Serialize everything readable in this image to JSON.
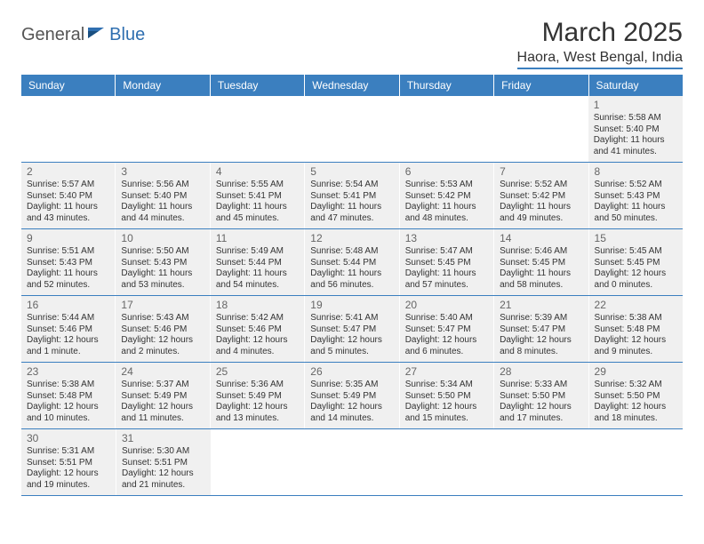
{
  "logo": {
    "general": "General",
    "blue": "Blue"
  },
  "title": "March 2025",
  "location": "Haora, West Bengal, India",
  "colors": {
    "header_bg": "#3b7fbf",
    "header_text": "#ffffff",
    "cell_bg": "#f0f0f0",
    "row_border": "#3b7fbf",
    "daynum": "#666666",
    "body_text": "#333333"
  },
  "day_headers": [
    "Sunday",
    "Monday",
    "Tuesday",
    "Wednesday",
    "Thursday",
    "Friday",
    "Saturday"
  ],
  "weeks": [
    [
      {
        "empty": true
      },
      {
        "empty": true
      },
      {
        "empty": true
      },
      {
        "empty": true
      },
      {
        "empty": true
      },
      {
        "empty": true
      },
      {
        "n": "1",
        "sr": "5:58 AM",
        "ss": "5:40 PM",
        "dl": "11 hours and 41 minutes."
      }
    ],
    [
      {
        "n": "2",
        "sr": "5:57 AM",
        "ss": "5:40 PM",
        "dl": "11 hours and 43 minutes."
      },
      {
        "n": "3",
        "sr": "5:56 AM",
        "ss": "5:40 PM",
        "dl": "11 hours and 44 minutes."
      },
      {
        "n": "4",
        "sr": "5:55 AM",
        "ss": "5:41 PM",
        "dl": "11 hours and 45 minutes."
      },
      {
        "n": "5",
        "sr": "5:54 AM",
        "ss": "5:41 PM",
        "dl": "11 hours and 47 minutes."
      },
      {
        "n": "6",
        "sr": "5:53 AM",
        "ss": "5:42 PM",
        "dl": "11 hours and 48 minutes."
      },
      {
        "n": "7",
        "sr": "5:52 AM",
        "ss": "5:42 PM",
        "dl": "11 hours and 49 minutes."
      },
      {
        "n": "8",
        "sr": "5:52 AM",
        "ss": "5:43 PM",
        "dl": "11 hours and 50 minutes."
      }
    ],
    [
      {
        "n": "9",
        "sr": "5:51 AM",
        "ss": "5:43 PM",
        "dl": "11 hours and 52 minutes."
      },
      {
        "n": "10",
        "sr": "5:50 AM",
        "ss": "5:43 PM",
        "dl": "11 hours and 53 minutes."
      },
      {
        "n": "11",
        "sr": "5:49 AM",
        "ss": "5:44 PM",
        "dl": "11 hours and 54 minutes."
      },
      {
        "n": "12",
        "sr": "5:48 AM",
        "ss": "5:44 PM",
        "dl": "11 hours and 56 minutes."
      },
      {
        "n": "13",
        "sr": "5:47 AM",
        "ss": "5:45 PM",
        "dl": "11 hours and 57 minutes."
      },
      {
        "n": "14",
        "sr": "5:46 AM",
        "ss": "5:45 PM",
        "dl": "11 hours and 58 minutes."
      },
      {
        "n": "15",
        "sr": "5:45 AM",
        "ss": "5:45 PM",
        "dl": "12 hours and 0 minutes."
      }
    ],
    [
      {
        "n": "16",
        "sr": "5:44 AM",
        "ss": "5:46 PM",
        "dl": "12 hours and 1 minute."
      },
      {
        "n": "17",
        "sr": "5:43 AM",
        "ss": "5:46 PM",
        "dl": "12 hours and 2 minutes."
      },
      {
        "n": "18",
        "sr": "5:42 AM",
        "ss": "5:46 PM",
        "dl": "12 hours and 4 minutes."
      },
      {
        "n": "19",
        "sr": "5:41 AM",
        "ss": "5:47 PM",
        "dl": "12 hours and 5 minutes."
      },
      {
        "n": "20",
        "sr": "5:40 AM",
        "ss": "5:47 PM",
        "dl": "12 hours and 6 minutes."
      },
      {
        "n": "21",
        "sr": "5:39 AM",
        "ss": "5:47 PM",
        "dl": "12 hours and 8 minutes."
      },
      {
        "n": "22",
        "sr": "5:38 AM",
        "ss": "5:48 PM",
        "dl": "12 hours and 9 minutes."
      }
    ],
    [
      {
        "n": "23",
        "sr": "5:38 AM",
        "ss": "5:48 PM",
        "dl": "12 hours and 10 minutes."
      },
      {
        "n": "24",
        "sr": "5:37 AM",
        "ss": "5:49 PM",
        "dl": "12 hours and 11 minutes."
      },
      {
        "n": "25",
        "sr": "5:36 AM",
        "ss": "5:49 PM",
        "dl": "12 hours and 13 minutes."
      },
      {
        "n": "26",
        "sr": "5:35 AM",
        "ss": "5:49 PM",
        "dl": "12 hours and 14 minutes."
      },
      {
        "n": "27",
        "sr": "5:34 AM",
        "ss": "5:50 PM",
        "dl": "12 hours and 15 minutes."
      },
      {
        "n": "28",
        "sr": "5:33 AM",
        "ss": "5:50 PM",
        "dl": "12 hours and 17 minutes."
      },
      {
        "n": "29",
        "sr": "5:32 AM",
        "ss": "5:50 PM",
        "dl": "12 hours and 18 minutes."
      }
    ],
    [
      {
        "n": "30",
        "sr": "5:31 AM",
        "ss": "5:51 PM",
        "dl": "12 hours and 19 minutes."
      },
      {
        "n": "31",
        "sr": "5:30 AM",
        "ss": "5:51 PM",
        "dl": "12 hours and 21 minutes."
      },
      {
        "empty": true
      },
      {
        "empty": true
      },
      {
        "empty": true
      },
      {
        "empty": true
      },
      {
        "empty": true
      }
    ]
  ],
  "labels": {
    "sunrise": "Sunrise:",
    "sunset": "Sunset:",
    "daylight": "Daylight:"
  }
}
